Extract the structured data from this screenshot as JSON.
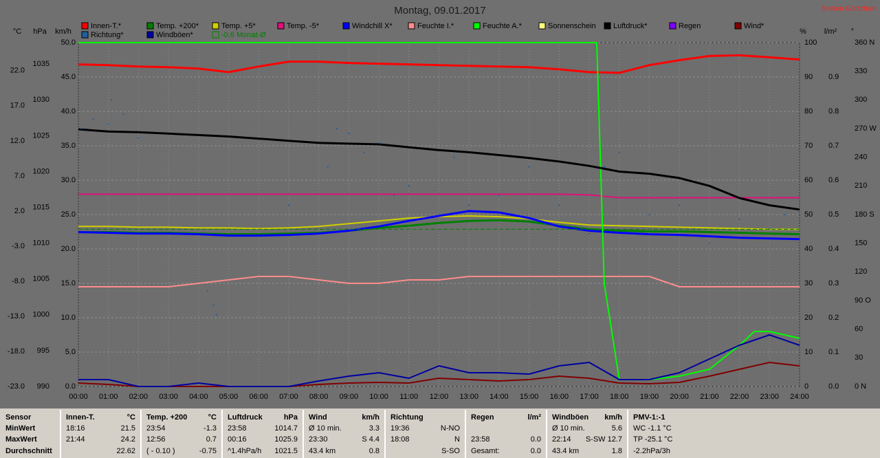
{
  "chart_data": {
    "type": "line",
    "title": "Montag, 09.01.2017",
    "station": "Station Göritzhain",
    "x": [
      0,
      1,
      2,
      3,
      4,
      5,
      6,
      7,
      8,
      9,
      10,
      11,
      12,
      13,
      14,
      15,
      16,
      17,
      18,
      19,
      20,
      21,
      22,
      23,
      24
    ],
    "xlim": [
      0,
      24
    ],
    "xticks": [
      {
        "value": 0,
        "label": "00:00"
      },
      {
        "value": 1,
        "label": "01:00"
      },
      {
        "value": 2,
        "label": "02:00"
      },
      {
        "value": 3,
        "label": "03:00"
      },
      {
        "value": 4,
        "label": "04:00"
      },
      {
        "value": 5,
        "label": "05:00"
      },
      {
        "value": 6,
        "label": "06:00"
      },
      {
        "value": 7,
        "label": "07:00"
      },
      {
        "value": 8,
        "label": "08:00"
      },
      {
        "value": 9,
        "label": "09:00"
      },
      {
        "value": 10,
        "label": "10:00"
      },
      {
        "value": 11,
        "label": "11:00"
      },
      {
        "value": 12,
        "label": "12:00"
      },
      {
        "value": 13,
        "label": "13:00"
      },
      {
        "value": 14,
        "label": "14:00"
      },
      {
        "value": 15,
        "label": "15:00"
      },
      {
        "value": 16,
        "label": "16:00"
      },
      {
        "value": 17,
        "label": "17:00"
      },
      {
        "value": 18,
        "label": "18:00"
      },
      {
        "value": 19,
        "label": "19:00"
      },
      {
        "value": 20,
        "label": "20:00"
      },
      {
        "value": 21,
        "label": "21:00"
      },
      {
        "value": 22,
        "label": "22:00"
      },
      {
        "value": 23,
        "label": "23:00"
      },
      {
        "value": 24,
        "label": "24:00"
      }
    ],
    "axes": {
      "temp": {
        "label": "°C",
        "lim": [
          -23,
          26
        ],
        "ticks": [
          {
            "value": 22,
            "label": "22.0"
          },
          {
            "value": 17,
            "label": "17.0"
          },
          {
            "value": 12,
            "label": "12.0"
          },
          {
            "value": 7,
            "label": "7.0"
          },
          {
            "value": 2,
            "label": "2.0"
          },
          {
            "value": -3,
            "label": "-3.0"
          },
          {
            "value": -8,
            "label": "-8.0"
          },
          {
            "value": -13,
            "label": "-13.0"
          },
          {
            "value": -18,
            "label": "-18.0"
          },
          {
            "value": -23,
            "label": "-23.0"
          }
        ]
      },
      "pressure": {
        "label": "hPa",
        "lim": [
          990,
          1038
        ],
        "ticks": [
          1035,
          1030,
          1025,
          1020,
          1015,
          1010,
          1005,
          1000,
          995,
          990
        ]
      },
      "wind": {
        "label": "km/h",
        "lim": [
          0,
          50
        ],
        "grid": true,
        "ticks": [
          {
            "value": 50,
            "label": "50.0"
          },
          {
            "value": 45,
            "label": "45.0"
          },
          {
            "value": 40,
            "label": "40.0"
          },
          {
            "value": 35,
            "label": "35.0"
          },
          {
            "value": 30,
            "label": "30.0"
          },
          {
            "value": 25,
            "label": "25.0"
          },
          {
            "value": 20,
            "label": "20.0"
          },
          {
            "value": 15,
            "label": "15.0"
          },
          {
            "value": 10,
            "label": "10.0"
          },
          {
            "value": 5,
            "label": "5.0"
          },
          {
            "value": 0,
            "label": "0.0"
          }
        ]
      },
      "humidity": {
        "label": "%",
        "lim": [
          0,
          100
        ],
        "ticks": [
          100,
          90,
          80,
          70,
          60,
          50,
          40,
          30,
          20,
          10,
          0
        ]
      },
      "rain": {
        "label": "l/m²",
        "lim": [
          0,
          1
        ],
        "ticks": [
          {
            "value": 0.9,
            "label": "0.9"
          },
          {
            "value": 0.8,
            "label": "0.8"
          },
          {
            "value": 0.7,
            "label": "0.7"
          },
          {
            "value": 0.6,
            "label": "0.6"
          },
          {
            "value": 0.5,
            "label": "0.5"
          },
          {
            "value": 0.4,
            "label": "0.4"
          },
          {
            "value": 0.3,
            "label": "0.3"
          },
          {
            "value": 0.2,
            "label": "0.2"
          },
          {
            "value": 0.1,
            "label": "0.1"
          },
          {
            "value": 0,
            "label": "0.0"
          }
        ]
      },
      "direction": {
        "label": "°",
        "lim": [
          0,
          360
        ],
        "ticks": [
          {
            "value": 360,
            "label": "360 N"
          },
          330,
          300,
          {
            "value": 270,
            "label": "270 W"
          },
          240,
          210,
          {
            "value": 180,
            "label": "180 S"
          },
          150,
          120,
          {
            "value": 90,
            "label": "90 O"
          },
          60,
          30,
          {
            "value": 0,
            "label": "0 N"
          }
        ]
      }
    },
    "series": [
      {
        "name": "Innen-T.*",
        "color": "#ff0000",
        "axis": "temp",
        "width": 3,
        "values": [
          22.9,
          22.8,
          22.6,
          22.5,
          22.3,
          21.8,
          22.6,
          23.3,
          23.3,
          23.1,
          23.0,
          22.9,
          22.8,
          22.7,
          22.6,
          22.5,
          22.2,
          21.8,
          21.7,
          22.8,
          23.5,
          24.1,
          24.2,
          23.9,
          23.6
        ]
      },
      {
        "name": "Temp. +200*",
        "color": "#008000",
        "axis": "temp",
        "width": 3,
        "values": [
          -1.0,
          -1.0,
          -1.1,
          -1.1,
          -1.2,
          -1.3,
          -1.3,
          -1.2,
          -1.1,
          -0.8,
          -0.4,
          -0.1,
          0.3,
          0.6,
          0.7,
          0.5,
          -0.1,
          -0.6,
          -0.8,
          -0.9,
          -0.9,
          -1.0,
          -1.1,
          -1.2,
          -1.3
        ]
      },
      {
        "name": "Temp. +5*",
        "color": "#d0d000",
        "axis": "temp",
        "width": 2,
        "values": [
          -0.2,
          -0.2,
          -0.3,
          -0.3,
          -0.4,
          -0.4,
          -0.5,
          -0.4,
          -0.2,
          0.2,
          0.6,
          1.0,
          1.2,
          1.3,
          1.2,
          0.9,
          0.4,
          0.0,
          -0.1,
          -0.2,
          -0.3,
          -0.4,
          -0.5,
          -0.6,
          -0.6
        ]
      },
      {
        "name": "Temp. -5*",
        "color": "#e0107a",
        "axis": "temp",
        "width": 2,
        "values": [
          4.4,
          4.4,
          4.4,
          4.4,
          4.4,
          4.4,
          4.4,
          4.4,
          4.4,
          4.4,
          4.4,
          4.4,
          4.4,
          4.4,
          4.4,
          4.4,
          4.4,
          4.3,
          3.9,
          3.9,
          3.9,
          3.9,
          3.9,
          3.9,
          3.9
        ]
      },
      {
        "name": "Windchill X*",
        "color": "#0000ff",
        "axis": "temp",
        "width": 3,
        "values": [
          -1.0,
          -1.1,
          -1.2,
          -1.2,
          -1.3,
          -1.5,
          -1.5,
          -1.4,
          -1.2,
          -0.8,
          -0.2,
          0.6,
          1.3,
          2.0,
          1.8,
          1.0,
          -0.2,
          -0.8,
          -1.1,
          -1.3,
          -1.4,
          -1.6,
          -1.8,
          -1.9,
          -2.0
        ]
      },
      {
        "name": "Feuchte I.*",
        "color": "#ff8c8c",
        "axis": "humidity",
        "width": 2,
        "values": [
          29,
          29,
          29,
          29,
          30,
          31,
          32,
          32,
          31,
          30,
          30,
          31,
          31,
          32,
          32,
          32,
          32,
          32,
          32,
          32,
          29,
          29,
          29,
          29,
          29
        ]
      },
      {
        "name": "Feuchte A.*",
        "color": "#00ff00",
        "axis": "humidity",
        "width": 2,
        "x": [
          0,
          17.25,
          17.5,
          18,
          19,
          20,
          21,
          22,
          22.5,
          23,
          24
        ],
        "values": [
          100,
          100,
          30,
          2,
          2,
          3,
          5,
          12,
          16,
          16,
          14
        ]
      },
      {
        "name": "Sonnenschein",
        "color": "#ffff80"
      },
      {
        "name": "Luftdruck*",
        "color": "#000000",
        "axis": "pressure",
        "width": 3,
        "values": [
          1025.9,
          1025.6,
          1025.5,
          1025.3,
          1025.1,
          1024.9,
          1024.6,
          1024.3,
          1024.0,
          1023.9,
          1023.8,
          1023.4,
          1023.0,
          1022.7,
          1022.3,
          1021.9,
          1021.4,
          1020.8,
          1020.0,
          1019.7,
          1019.1,
          1018.0,
          1016.3,
          1015.3,
          1014.7
        ]
      },
      {
        "name": "Regen",
        "color": "#8000ff"
      },
      {
        "name": "Wind*",
        "color": "#800000",
        "axis": "wind",
        "width": 2,
        "values": [
          0.5,
          0.3,
          0,
          0,
          0,
          0,
          0,
          0,
          0.3,
          0.5,
          0.6,
          0.5,
          1.2,
          1.0,
          0.8,
          1.0,
          1.5,
          1.2,
          0.5,
          0.4,
          0.6,
          1.5,
          2.5,
          3.5,
          3.0
        ]
      },
      {
        "name": "Richtung*",
        "color": "#2060a0",
        "axis": "direction",
        "type": "scatter",
        "x": [
          0.1,
          0.5,
          1.0,
          1.1,
          1.5,
          2.0,
          4.3,
          4.5,
          4.6,
          7.0,
          8.3,
          8.6,
          9.0,
          9.5,
          10.0,
          10.5,
          11.0,
          12.0,
          12.5,
          13.0,
          14.0,
          15.0,
          15.5,
          16.0,
          17.0,
          17.5,
          18.0,
          19.0,
          20.0,
          20.5,
          21.0,
          22.0,
          23.0,
          23.5
        ],
        "values": [
          270,
          280,
          275,
          300,
          285,
          260,
          100,
          85,
          75,
          190,
          230,
          270,
          265,
          245,
          255,
          200,
          210,
          180,
          240,
          190,
          200,
          230,
          170,
          190,
          160,
          230,
          245,
          180,
          190,
          165,
          150,
          175,
          165,
          180
        ]
      },
      {
        "name": "Windböen*",
        "color": "#0000a0",
        "axis": "wind",
        "width": 2,
        "values": [
          1.0,
          1.0,
          0,
          0,
          0.5,
          0,
          0,
          0,
          0.8,
          1.5,
          2.0,
          1.2,
          3.0,
          2.0,
          2.0,
          1.8,
          3.0,
          3.5,
          1.0,
          1.0,
          2.0,
          4.0,
          6.0,
          7.5,
          6.0
        ]
      },
      {
        "name": "-0.6 Monat-Ø",
        "color": "#008000",
        "axis": "temp",
        "type": "reference",
        "value": -0.6
      }
    ]
  },
  "stats_table": [
    {
      "header": [
        "Sensor"
      ],
      "rows": [
        [
          "MinWert"
        ],
        [
          "MaxWert"
        ],
        [
          "Durchschnitt"
        ]
      ]
    },
    {
      "header": [
        "Innen-T.",
        "°C"
      ],
      "rows": [
        [
          "18:16",
          "21.5"
        ],
        [
          "21:44",
          "24.2"
        ],
        [
          null,
          "22.62"
        ]
      ]
    },
    {
      "header": [
        "Temp. +200",
        "°C"
      ],
      "rows": [
        [
          "23:54",
          "-1.3"
        ],
        [
          "12:56",
          "0.7"
        ],
        [
          "( - 0.10 )",
          "-0.75"
        ]
      ]
    },
    {
      "header": [
        "Luftdruck",
        "hPa"
      ],
      "rows": [
        [
          "23:58",
          "1014.7"
        ],
        [
          "00:16",
          "1025.9"
        ],
        [
          "^1.4hPa/h",
          "1021.5"
        ]
      ]
    },
    {
      "header": [
        "Wind",
        "km/h"
      ],
      "rows": [
        [
          "Ø 10 min.",
          "3.3"
        ],
        [
          "23:30",
          "S 4.4"
        ],
        [
          "43.4 km",
          "0.8"
        ]
      ]
    },
    {
      "header": [
        "Richtung"
      ],
      "rows": [
        [
          "19:36",
          "N-NO"
        ],
        [
          "18:08",
          "N"
        ],
        [
          null,
          "S-SO"
        ]
      ]
    },
    {
      "header": [
        "Regen",
        "l/m²"
      ],
      "rows": [
        [
          null,
          null
        ],
        [
          "23:58",
          "0.0"
        ],
        [
          "Gesamt:",
          "0.0"
        ]
      ]
    },
    {
      "header": [
        "Windböen",
        "km/h"
      ],
      "rows": [
        [
          "Ø 10 min.",
          "5.6"
        ],
        [
          "22:14",
          "S-SW 12.7"
        ],
        [
          "43.4 km",
          "1.8"
        ]
      ]
    },
    {
      "header": [
        "PMV-1:-1"
      ],
      "rows": [
        [
          "WC -1.1 °C"
        ],
        [
          "TP -25.1 °C"
        ],
        [
          "-2.2hPa/3h"
        ]
      ]
    }
  ]
}
